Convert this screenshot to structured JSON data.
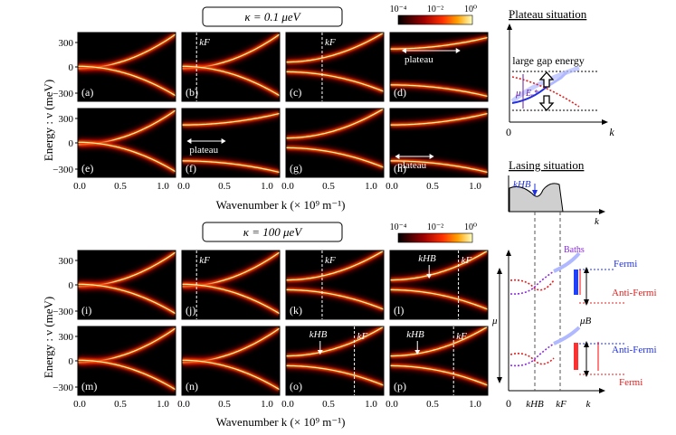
{
  "top_title": "κ = 0.1 μeV",
  "bottom_title": "κ = 100 μeV",
  "colorbar_ticks": [
    "10⁻⁴",
    "10⁻²",
    "10⁰"
  ],
  "y_axis_label": "Energy : ν (meV)",
  "y_ticks": [
    "300",
    "0",
    "−300"
  ],
  "x_ticks": [
    "0.0",
    "0.5",
    "1.0"
  ],
  "x_axis_label": "Wavenumber k (× 10⁹ m⁻¹)",
  "panel_labels": [
    "(a)",
    "(b)",
    "(c)",
    "(d)",
    "(e)",
    "(f)",
    "(g)",
    "(h)",
    "(i)",
    "(j)",
    "(k)",
    "(l)",
    "(m)",
    "(n)",
    "(o)",
    "(p)"
  ],
  "annotations": {
    "kF": "kF",
    "kHB": "kHB",
    "plateau": "plateau"
  },
  "plateau": {
    "title": "Plateau situation",
    "gap_label": "large gap energy",
    "mu": "μ",
    "eps": "Eₑ*",
    "origin": "0",
    "k": "k"
  },
  "lasing": {
    "title": "Lasing situation",
    "khb": "kHB",
    "k": "k",
    "baths": "Baths",
    "fermi": "Fermi",
    "antifermi": "Anti-Fermi",
    "mu": "μ",
    "mub": "μB",
    "origin": "0",
    "xticks": [
      "0",
      "kHB",
      "kF",
      "k"
    ]
  },
  "colors": {
    "plateau_title": "#000000",
    "fermi": "#2030e0",
    "antifermi": "#e02020",
    "baths": "#8a2be2"
  }
}
